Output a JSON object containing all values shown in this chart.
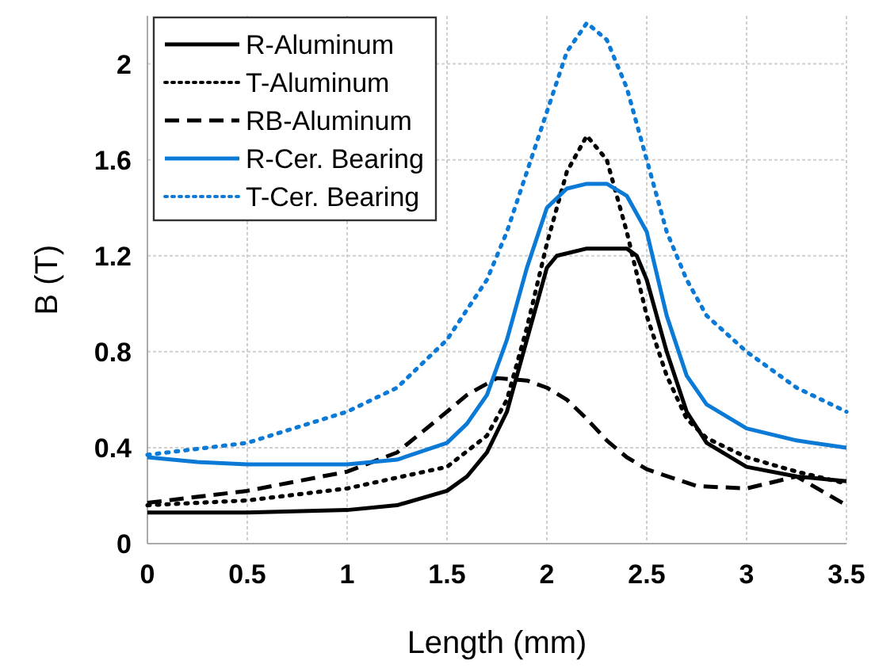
{
  "chart_data": {
    "type": "line",
    "xlabel": "Length (mm)",
    "ylabel": "B (T)",
    "xlim": [
      0,
      3.5
    ],
    "xticks": [
      0,
      0.5,
      1,
      1.5,
      2,
      2.5,
      3,
      3.5
    ],
    "ylim": [
      0,
      2.2
    ],
    "yticks": [
      0,
      0.4,
      0.8,
      1.2,
      1.6,
      2
    ],
    "grid": true,
    "legend": "top left",
    "marker": "none",
    "series": [
      {
        "name": "R-Aluminum",
        "color": "#000000",
        "line_style": "solid",
        "x": [
          0,
          0.5,
          1,
          1.25,
          1.5,
          1.6,
          1.7,
          1.8,
          1.9,
          2.0,
          2.05,
          2.2,
          2.4,
          2.45,
          2.5,
          2.6,
          2.7,
          2.8,
          3.0,
          3.25,
          3.5
        ],
        "values": [
          0.13,
          0.13,
          0.14,
          0.16,
          0.22,
          0.28,
          0.38,
          0.55,
          0.85,
          1.15,
          1.2,
          1.23,
          1.23,
          1.2,
          1.1,
          0.8,
          0.55,
          0.42,
          0.32,
          0.28,
          0.26
        ]
      },
      {
        "name": "T-Aluminum",
        "color": "#000000",
        "line_style": "dotted",
        "x": [
          0,
          0.5,
          1,
          1.5,
          1.7,
          1.8,
          1.9,
          2.0,
          2.1,
          2.2,
          2.3,
          2.4,
          2.5,
          2.6,
          2.7,
          2.8,
          3.0,
          3.25,
          3.5
        ],
        "values": [
          0.16,
          0.18,
          0.23,
          0.32,
          0.45,
          0.6,
          0.9,
          1.25,
          1.55,
          1.7,
          1.6,
          1.3,
          0.95,
          0.7,
          0.52,
          0.44,
          0.36,
          0.3,
          0.25
        ]
      },
      {
        "name": "RB-Aluminum",
        "color": "#000000",
        "line_style": "dashed",
        "x": [
          0,
          0.5,
          1,
          1.25,
          1.5,
          1.6,
          1.75,
          1.9,
          2.0,
          2.1,
          2.2,
          2.3,
          2.4,
          2.5,
          2.75,
          3.0,
          3.1,
          3.25,
          3.5
        ],
        "values": [
          0.17,
          0.22,
          0.3,
          0.38,
          0.55,
          0.62,
          0.69,
          0.68,
          0.65,
          0.6,
          0.52,
          0.43,
          0.36,
          0.31,
          0.24,
          0.23,
          0.25,
          0.28,
          0.16
        ]
      },
      {
        "name": "R-Cer. Bearing",
        "color": "#0a7ad6",
        "line_style": "solid",
        "x": [
          0,
          0.25,
          0.5,
          1,
          1.25,
          1.5,
          1.6,
          1.7,
          1.8,
          1.9,
          2.0,
          2.1,
          2.2,
          2.3,
          2.4,
          2.5,
          2.6,
          2.7,
          2.8,
          3.0,
          3.25,
          3.5
        ],
        "values": [
          0.36,
          0.34,
          0.33,
          0.33,
          0.35,
          0.42,
          0.5,
          0.62,
          0.85,
          1.15,
          1.4,
          1.48,
          1.5,
          1.5,
          1.45,
          1.3,
          0.95,
          0.7,
          0.58,
          0.48,
          0.43,
          0.4
        ]
      },
      {
        "name": "T-Cer. Bearing",
        "color": "#0a7ad6",
        "line_style": "dotted",
        "x": [
          0,
          0.5,
          1,
          1.25,
          1.5,
          1.7,
          1.8,
          1.9,
          2.0,
          2.1,
          2.2,
          2.3,
          2.4,
          2.5,
          2.6,
          2.7,
          2.8,
          3.0,
          3.25,
          3.5
        ],
        "values": [
          0.37,
          0.42,
          0.55,
          0.65,
          0.85,
          1.1,
          1.3,
          1.55,
          1.8,
          2.05,
          2.17,
          2.1,
          1.9,
          1.6,
          1.3,
          1.1,
          0.95,
          0.8,
          0.65,
          0.55
        ]
      }
    ]
  }
}
